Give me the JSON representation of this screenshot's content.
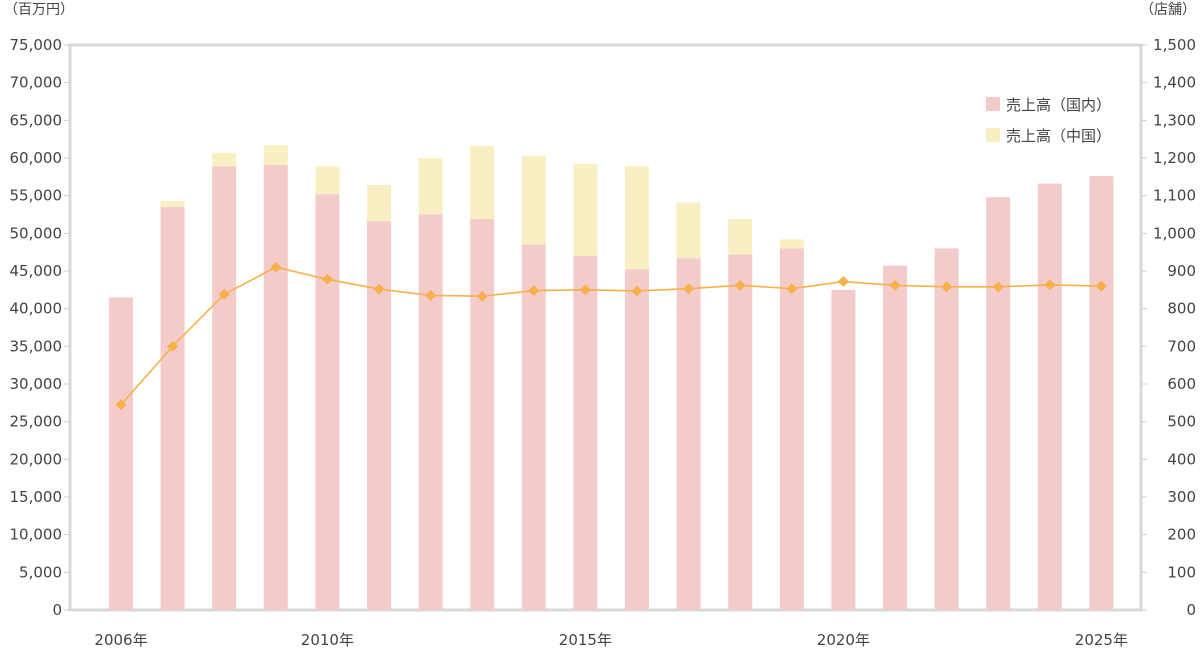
{
  "chart_data": {
    "type": "bar",
    "stacked": true,
    "left_unit": "（百万円）",
    "right_unit": "（店舗）",
    "x": [
      2006,
      2007,
      2008,
      2009,
      2010,
      2011,
      2012,
      2013,
      2014,
      2015,
      2016,
      2017,
      2018,
      2019,
      2020,
      2021,
      2022,
      2023,
      2024,
      2025
    ],
    "x_tick_labels": [
      {
        "year": 2006,
        "label": "2006年"
      },
      {
        "year": 2010,
        "label": "2010年"
      },
      {
        "year": 2015,
        "label": "2015年"
      },
      {
        "year": 2020,
        "label": "2020年"
      },
      {
        "year": 2025,
        "label": "2025年"
      }
    ],
    "y_left": {
      "lim": [
        0,
        75000
      ],
      "ticks": [
        "0",
        "5,000",
        "10,000",
        "15,000",
        "20,000",
        "25,000",
        "30,000",
        "35,000",
        "40,000",
        "45,000",
        "50,000",
        "55,000",
        "60,000",
        "65,000",
        "70,000",
        "75,000"
      ]
    },
    "y_right": {
      "lim": [
        0,
        1500
      ],
      "ticks": [
        "0",
        "100",
        "200",
        "300",
        "400",
        "500",
        "600",
        "700",
        "800",
        "900",
        "1,000",
        "1,100",
        "1,200",
        "1,300",
        "1,400",
        "1,500"
      ]
    },
    "series": [
      {
        "name": "売上高（国内）",
        "kind": "bar",
        "axis": "left",
        "color": "#f4cbcb",
        "values": [
          41500,
          53500,
          58900,
          59100,
          55200,
          51600,
          52500,
          51900,
          48500,
          47000,
          45200,
          46700,
          47200,
          48000,
          42500,
          45700,
          48000,
          54800,
          56600,
          57600
        ]
      },
      {
        "name": "売上高（中国）",
        "kind": "bar",
        "axis": "left",
        "color": "#f8efc3",
        "values": [
          0,
          800,
          1800,
          2600,
          3700,
          4800,
          7500,
          9700,
          11800,
          12200,
          13700,
          7400,
          4700,
          1200,
          0,
          0,
          0,
          0,
          0,
          0
        ]
      },
      {
        "kind": "line",
        "axis": "right",
        "color": "#f7b04a",
        "values": [
          545,
          700,
          838,
          910,
          878,
          852,
          835,
          833,
          848,
          850,
          847,
          853,
          862,
          853,
          872,
          862,
          858,
          858,
          863,
          860
        ]
      }
    ],
    "legend": {
      "placement": "top-right"
    },
    "grid": false
  }
}
